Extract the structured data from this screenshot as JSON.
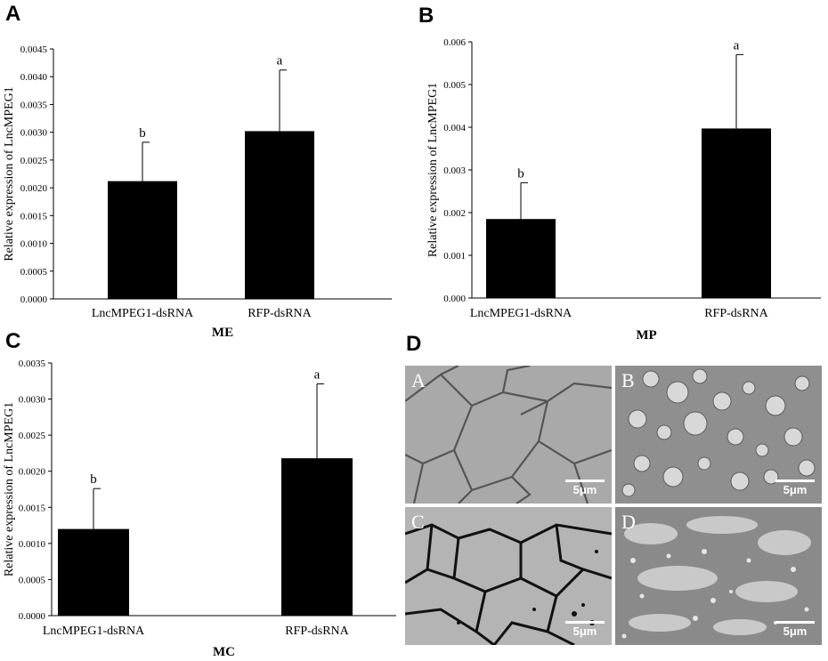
{
  "chart_data": [
    {
      "panel": "A",
      "type": "bar",
      "group_label": "ME",
      "ylabel": "Relative expression of LncMPEG1",
      "categories": [
        "LncMPEG1-dsRNA",
        "RFP-dsRNA"
      ],
      "values": [
        0.00212,
        0.00302
      ],
      "errors": [
        0.0007,
        0.0011
      ],
      "significance": [
        "b",
        "a"
      ],
      "ylim": [
        0,
        0.0045
      ],
      "yticks": [
        "0.0000",
        "0.0005",
        "0.0010",
        "0.0015",
        "0.0020",
        "0.0025",
        "0.0030",
        "0.0035",
        "0.0040",
        "0.0045"
      ],
      "color": "#000000"
    },
    {
      "panel": "B",
      "type": "bar",
      "group_label": "MP",
      "ylabel": "Relative expression of LncMPEG1",
      "categories": [
        "LncMPEG1-dsRNA",
        "RFP-dsRNA"
      ],
      "values": [
        0.00185,
        0.00397
      ],
      "errors": [
        0.00085,
        0.00173
      ],
      "significance": [
        "b",
        "a"
      ],
      "ylim": [
        0,
        0.006
      ],
      "yticks": [
        "0.000",
        "0.001",
        "0.002",
        "0.003",
        "0.004",
        "0.005",
        "0.006"
      ],
      "color": "#000000"
    },
    {
      "panel": "C",
      "type": "bar",
      "group_label": "MC",
      "ylabel": "Relative expression of LncMPEG1",
      "categories": [
        "LncMPEG1-dsRNA",
        "RFP-dsRNA"
      ],
      "values": [
        0.0012,
        0.00218
      ],
      "errors": [
        0.00056,
        0.00103
      ],
      "significance": [
        "b",
        "a"
      ],
      "ylim": [
        0,
        0.0035
      ],
      "yticks": [
        "0.0000",
        "0.0005",
        "0.0010",
        "0.0015",
        "0.0020",
        "0.0025",
        "0.0030",
        "0.0035"
      ],
      "color": "#000000"
    }
  ],
  "panels": {
    "a": "A",
    "b": "B",
    "c": "C",
    "d": "D"
  },
  "micrographs": [
    {
      "label": "A",
      "scale": "5μm",
      "texture": "grain-boundaries"
    },
    {
      "label": "B",
      "scale": "5μm",
      "texture": "blobs"
    },
    {
      "label": "C",
      "scale": "5μm",
      "texture": "dark-network"
    },
    {
      "label": "D",
      "scale": "5μm",
      "texture": "speckled"
    }
  ]
}
